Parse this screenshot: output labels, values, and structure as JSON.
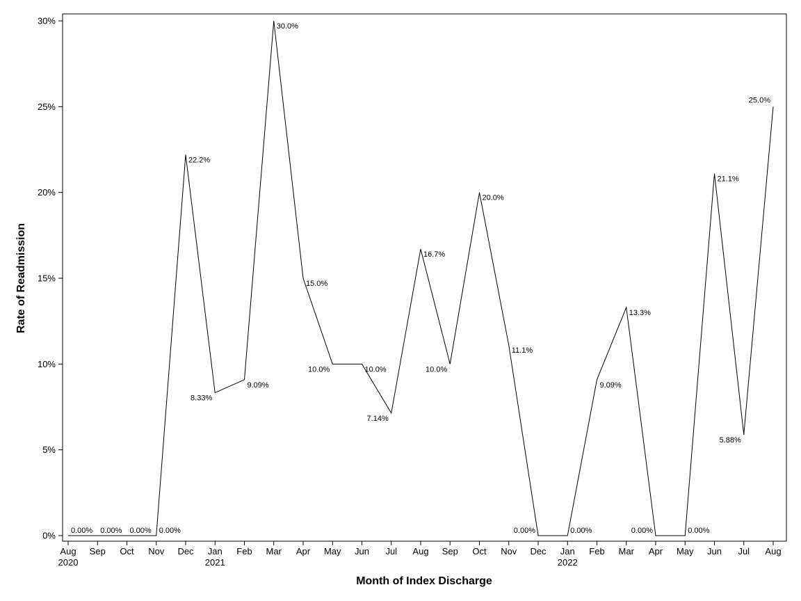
{
  "chart_data": {
    "type": "line",
    "title": "",
    "xlabel": "Month of Index Discharge",
    "ylabel": "Rate of Readmission",
    "ylim": [
      0,
      30
    ],
    "yticks": [
      {
        "value": 0,
        "label": "0%"
      },
      {
        "value": 5,
        "label": "5%"
      },
      {
        "value": 10,
        "label": "10%"
      },
      {
        "value": 15,
        "label": "15%"
      },
      {
        "value": 20,
        "label": "20%"
      },
      {
        "value": 25,
        "label": "25%"
      },
      {
        "value": 30,
        "label": "30%"
      }
    ],
    "grid": false,
    "legend": "none",
    "line_color": "#000000",
    "x": [
      {
        "month": "Aug",
        "year": "2020"
      },
      {
        "month": "Sep",
        "year": ""
      },
      {
        "month": "Oct",
        "year": ""
      },
      {
        "month": "Nov",
        "year": ""
      },
      {
        "month": "Dec",
        "year": ""
      },
      {
        "month": "Jan",
        "year": "2021"
      },
      {
        "month": "Feb",
        "year": ""
      },
      {
        "month": "Mar",
        "year": ""
      },
      {
        "month": "Apr",
        "year": ""
      },
      {
        "month": "May",
        "year": ""
      },
      {
        "month": "Jun",
        "year": ""
      },
      {
        "month": "Jul",
        "year": ""
      },
      {
        "month": "Aug",
        "year": ""
      },
      {
        "month": "Sep",
        "year": ""
      },
      {
        "month": "Oct",
        "year": ""
      },
      {
        "month": "Nov",
        "year": ""
      },
      {
        "month": "Dec",
        "year": ""
      },
      {
        "month": "Jan",
        "year": "2022"
      },
      {
        "month": "Feb",
        "year": ""
      },
      {
        "month": "Mar",
        "year": ""
      },
      {
        "month": "Apr",
        "year": ""
      },
      {
        "month": "May",
        "year": ""
      },
      {
        "month": "Jun",
        "year": ""
      },
      {
        "month": "Jul",
        "year": ""
      },
      {
        "month": "Aug",
        "year": ""
      }
    ],
    "values": [
      0,
      0,
      0,
      0,
      22.2,
      8.33,
      9.09,
      30.0,
      15.0,
      10.0,
      10.0,
      7.14,
      16.7,
      10.0,
      20.0,
      11.1,
      0,
      0,
      9.09,
      13.3,
      0,
      0,
      21.1,
      5.88,
      25.0
    ],
    "data_labels": [
      "0.00%",
      "0.00%",
      "0.00%",
      "0.00%",
      "22.2%",
      "8.33%",
      "9.09%",
      "30.0%",
      "15.0%",
      "10.0%",
      "10.0%",
      "7.14%",
      "16.7%",
      "10.0%",
      "20.0%",
      "11.1%",
      "0.00%",
      "0.00%",
      "9.09%",
      "13.3%",
      "0.00%",
      "0.00%",
      "21.1%",
      "5.88%",
      "25.0%"
    ]
  }
}
